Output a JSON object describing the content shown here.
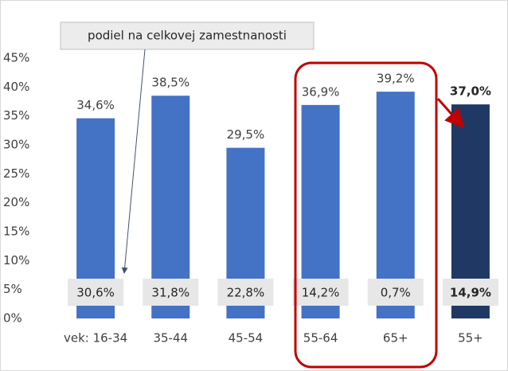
{
  "chart_data": {
    "type": "bar",
    "categories": [
      "vek: 16-34",
      "35-44",
      "45-54",
      "55-64",
      "65+",
      "55+"
    ],
    "values": [
      34.6,
      38.5,
      29.5,
      36.9,
      39.2,
      37.0
    ],
    "value_labels": [
      "34,6%",
      "38,5%",
      "29,5%",
      "36,9%",
      "39,2%",
      "37,0%"
    ],
    "colors": [
      "#4472c4",
      "#4472c4",
      "#4472c4",
      "#4472c4",
      "#4472c4",
      "#203864"
    ],
    "inner_labels": [
      "30,6%",
      "31,8%",
      "22,8%",
      "14,2%",
      "0,7%",
      "14,9%"
    ],
    "annotation": "podiel na celkovej zamestnanosti",
    "ylim": [
      0,
      45
    ],
    "yticks": [
      {
        "value": 0,
        "label": "0%"
      },
      {
        "value": 5,
        "label": "5%"
      },
      {
        "value": 10,
        "label": "10%"
      },
      {
        "value": 15,
        "label": "15%"
      },
      {
        "value": 20,
        "label": "20%"
      },
      {
        "value": 25,
        "label": "25%"
      },
      {
        "value": 30,
        "label": "30%"
      },
      {
        "value": 35,
        "label": "35%"
      },
      {
        "value": 40,
        "label": "40%"
      },
      {
        "value": 45,
        "label": "45%"
      }
    ],
    "grid": false
  }
}
